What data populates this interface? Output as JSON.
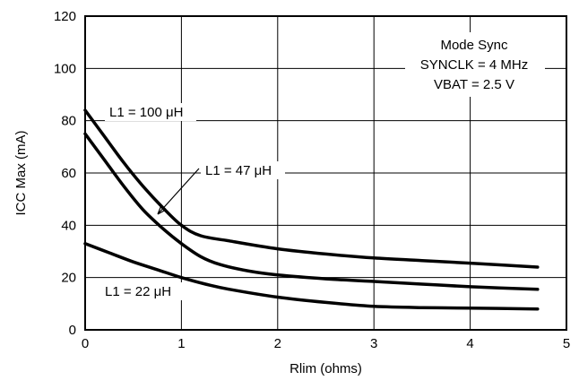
{
  "chart_data": {
    "type": "line",
    "xlabel": "Rlim (ohms)",
    "ylabel": "ICC Max (mA)",
    "xlim": [
      0,
      5
    ],
    "ylim": [
      0,
      120
    ],
    "xticks": [
      "0",
      "1",
      "2",
      "3",
      "4",
      "5"
    ],
    "yticks": [
      "0",
      "20",
      "40",
      "60",
      "80",
      "100",
      "120"
    ],
    "grid": true,
    "series": [
      {
        "name": "L1 = 100 μH",
        "x": [
          0,
          0.2,
          0.4,
          0.6,
          0.8,
          1.0,
          1.2,
          1.5,
          2.0,
          2.5,
          3.0,
          3.5,
          4.0,
          4.7
        ],
        "y": [
          84,
          74,
          64,
          55,
          47,
          40,
          36,
          34,
          31,
          29,
          27.5,
          26.5,
          25.5,
          24
        ]
      },
      {
        "name": "L1 = 47 μH",
        "x": [
          0,
          0.2,
          0.4,
          0.6,
          0.8,
          1.0,
          1.2,
          1.4,
          1.7,
          2.0,
          2.5,
          3.0,
          3.5,
          4.0,
          4.7
        ],
        "y": [
          75,
          65,
          55,
          46,
          39,
          33,
          28,
          25,
          22.5,
          21,
          19.5,
          18.5,
          17.5,
          16.5,
          15.5
        ]
      },
      {
        "name": "L1 = 22 μH",
        "x": [
          0,
          0.25,
          0.5,
          0.75,
          1.0,
          1.25,
          1.5,
          2.0,
          2.5,
          3.0,
          3.5,
          4.0,
          4.7
        ],
        "y": [
          33,
          29.5,
          26,
          23,
          20,
          17.5,
          15.5,
          12.5,
          10.5,
          9,
          8.5,
          8.3,
          8
        ]
      }
    ],
    "annotations": [
      {
        "text": "Mode Sync"
      },
      {
        "text": "SYNCLK = 4 MHz"
      },
      {
        "text": "VBAT = 2.5 V"
      }
    ],
    "series_labels": [
      "L1 = 100 μH",
      "L1 = 47 μH",
      "L1 = 22 μH"
    ]
  }
}
